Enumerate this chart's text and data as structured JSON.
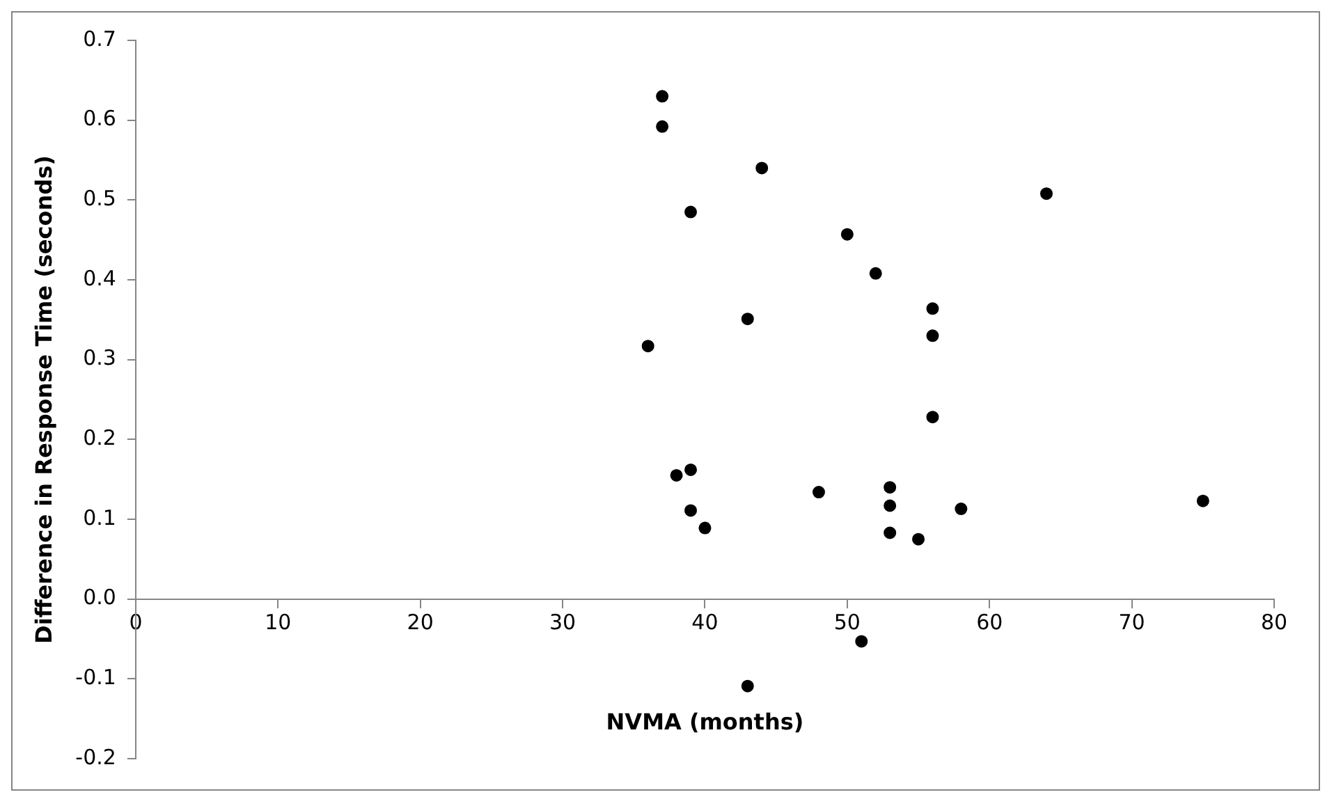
{
  "chart_data": {
    "type": "scatter",
    "xlabel": "NVMA (months)",
    "ylabel": "Difference in Response Time (seconds)",
    "xlim": [
      0,
      80
    ],
    "xticks": [
      0,
      10,
      20,
      30,
      40,
      50,
      60,
      70,
      80
    ],
    "ylim": [
      -0.2,
      0.7
    ],
    "yticks": [
      {
        "value": -0.2,
        "label": "-0.2"
      },
      {
        "value": -0.1,
        "label": "-0.1"
      },
      {
        "value": 0,
        "label": "0.0"
      },
      {
        "value": 0.1,
        "label": "0.1"
      },
      {
        "value": 0.2,
        "label": "0.2"
      },
      {
        "value": 0.3,
        "label": "0.3"
      },
      {
        "value": 0.4,
        "label": "0.4"
      },
      {
        "value": 0.5,
        "label": "0.5"
      },
      {
        "value": 0.6,
        "label": "0.6"
      },
      {
        "value": 0.7,
        "label": "0.7"
      }
    ],
    "grid": false,
    "legend": false,
    "marker": "circle",
    "series": [
      {
        "color": "#000000",
        "x": [
          37,
          37,
          44,
          39,
          50,
          52,
          56,
          56,
          43,
          36,
          56,
          64,
          38,
          39,
          39,
          40,
          48,
          53,
          53,
          53,
          55,
          58,
          75,
          51,
          43
        ],
        "values": [
          0.63,
          0.592,
          0.54,
          0.485,
          0.457,
          0.408,
          0.364,
          0.33,
          0.351,
          0.317,
          0.228,
          0.508,
          0.155,
          0.162,
          0.111,
          0.089,
          0.134,
          0.14,
          0.117,
          0.083,
          0.075,
          0.113,
          0.123,
          -0.053,
          -0.109
        ]
      }
    ]
  }
}
